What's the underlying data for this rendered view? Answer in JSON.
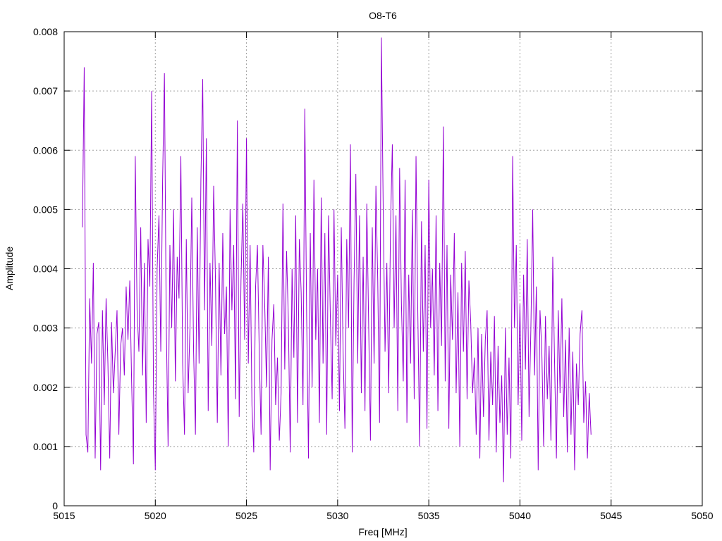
{
  "chart_data": {
    "type": "line",
    "title": "O8-T6",
    "xlabel": "Freq [MHz]",
    "ylabel": "Amplitude",
    "xlim": [
      5015,
      5050
    ],
    "ylim": [
      0,
      0.008
    ],
    "x_ticks": [
      "5015",
      "5020",
      "5025",
      "5030",
      "5035",
      "5040",
      "5045",
      "5050"
    ],
    "y_ticks": [
      "0",
      "0.001",
      "0.002",
      "0.003",
      "0.004",
      "0.005",
      "0.006",
      "0.007",
      "0.008"
    ],
    "grid": true,
    "legend": "none",
    "series": [
      {
        "color": "#9400d3",
        "x_start": 5016.0,
        "x_step": 0.1,
        "values": [
          0.0047,
          0.0074,
          0.0012,
          0.0009,
          0.0035,
          0.0024,
          0.0041,
          0.0008,
          0.0029,
          0.0031,
          0.0006,
          0.0033,
          0.0017,
          0.0035,
          0.0024,
          0.0008,
          0.0031,
          0.0019,
          0.0026,
          0.0033,
          0.0012,
          0.0027,
          0.003,
          0.0022,
          0.0037,
          0.0028,
          0.0038,
          0.0021,
          0.0007,
          0.0059,
          0.0033,
          0.0026,
          0.0047,
          0.0022,
          0.0041,
          0.0014,
          0.0045,
          0.0037,
          0.007,
          0.0019,
          0.0006,
          0.004,
          0.0049,
          0.0026,
          0.0055,
          0.0073,
          0.0031,
          0.001,
          0.0044,
          0.003,
          0.005,
          0.0021,
          0.0042,
          0.0035,
          0.0059,
          0.0024,
          0.0012,
          0.0045,
          0.0019,
          0.003,
          0.0052,
          0.0026,
          0.0012,
          0.0047,
          0.0024,
          0.0055,
          0.0072,
          0.0033,
          0.0062,
          0.0016,
          0.0041,
          0.0027,
          0.0054,
          0.0038,
          0.0014,
          0.0041,
          0.0022,
          0.0046,
          0.0029,
          0.0037,
          0.001,
          0.005,
          0.0033,
          0.0044,
          0.0018,
          0.0065,
          0.0015,
          0.0038,
          0.0051,
          0.0028,
          0.0062,
          0.0024,
          0.0044,
          0.0017,
          0.0009,
          0.0037,
          0.0044,
          0.0026,
          0.0012,
          0.0044,
          0.0034,
          0.002,
          0.0042,
          0.0006,
          0.0028,
          0.0034,
          0.0017,
          0.0025,
          0.0011,
          0.0019,
          0.0051,
          0.0023,
          0.0043,
          0.0031,
          0.0009,
          0.004,
          0.0025,
          0.0049,
          0.0014,
          0.0045,
          0.0036,
          0.0017,
          0.0067,
          0.0032,
          0.0008,
          0.0046,
          0.002,
          0.0055,
          0.0028,
          0.004,
          0.0014,
          0.0052,
          0.0024,
          0.0046,
          0.0012,
          0.0049,
          0.0032,
          0.0018,
          0.005,
          0.0027,
          0.0039,
          0.0016,
          0.0047,
          0.0026,
          0.0013,
          0.0045,
          0.003,
          0.0061,
          0.0009,
          0.0038,
          0.0056,
          0.0024,
          0.0049,
          0.0019,
          0.0042,
          0.0016,
          0.0051,
          0.0031,
          0.0011,
          0.0047,
          0.0024,
          0.0054,
          0.0038,
          0.0014,
          0.0079,
          0.005,
          0.0026,
          0.0041,
          0.0019,
          0.0047,
          0.0061,
          0.003,
          0.0049,
          0.0016,
          0.0057,
          0.0034,
          0.0021,
          0.0055,
          0.0014,
          0.0039,
          0.0024,
          0.005,
          0.0018,
          0.0059,
          0.0032,
          0.001,
          0.0048,
          0.0026,
          0.0044,
          0.0013,
          0.0055,
          0.003,
          0.004,
          0.0022,
          0.0049,
          0.0016,
          0.0041,
          0.0027,
          0.0064,
          0.0021,
          0.0044,
          0.0013,
          0.0039,
          0.0028,
          0.0046,
          0.0019,
          0.0036,
          0.001,
          0.0041,
          0.0026,
          0.0043,
          0.0018,
          0.0038,
          0.0031,
          0.0019,
          0.0025,
          0.0012,
          0.003,
          0.0008,
          0.0029,
          0.0015,
          0.0028,
          0.0033,
          0.0011,
          0.0026,
          0.0017,
          0.0032,
          0.0009,
          0.0027,
          0.0014,
          0.0022,
          0.0004,
          0.003,
          0.0012,
          0.0025,
          0.0008,
          0.0059,
          0.003,
          0.0044,
          0.0017,
          0.0034,
          0.0011,
          0.0039,
          0.0023,
          0.0045,
          0.0015,
          0.003,
          0.005,
          0.0022,
          0.0037,
          0.0006,
          0.0033,
          0.0026,
          0.001,
          0.0032,
          0.0018,
          0.0027,
          0.0011,
          0.0042,
          0.0024,
          0.0008,
          0.0033,
          0.0019,
          0.0035,
          0.0015,
          0.0028,
          0.0009,
          0.003,
          0.0012,
          0.0026,
          0.0006,
          0.0024,
          0.0017,
          0.0029,
          0.0033,
          0.0014,
          0.0021,
          0.0008,
          0.0019,
          0.0012
        ]
      }
    ]
  }
}
